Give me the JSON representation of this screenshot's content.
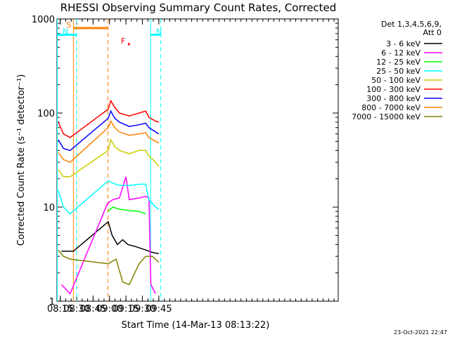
{
  "chart_data": {
    "type": "line",
    "title": "RHESSI Observing Summary Count Rates, Corrected",
    "xlabel": "Start Time (14-Mar-13 08:13:22)",
    "ylabel": "Corrected Count Rate (s⁻¹ detector⁻¹)",
    "x_ticks": [
      "08:15",
      "08:30",
      "08:45",
      "09:00",
      "09:15",
      "09:30",
      "09:45"
    ],
    "y_ticks": [
      "1",
      "10",
      "100",
      "1000"
    ],
    "y_scale": "log",
    "ylim": [
      1,
      1000
    ],
    "xlim_minutes": [
      8.2,
      12.48
    ],
    "legend_header": [
      "Det 1,3,4,5,6,9,",
      "Att 0"
    ],
    "legend_position": "right",
    "series": [
      {
        "name": "3 - 6 keV",
        "color": "#000000",
        "points": [
          [
            8.27,
            3.4
          ],
          [
            8.4,
            3.4
          ],
          [
            8.45,
            3.4
          ],
          [
            8.98,
            7.0
          ],
          [
            9.04,
            5.0
          ],
          [
            9.12,
            4.0
          ],
          [
            9.2,
            4.5
          ],
          [
            9.28,
            4.0
          ],
          [
            9.4,
            3.8
          ],
          [
            9.55,
            3.5
          ],
          [
            9.65,
            3.3
          ],
          [
            9.75,
            3.2
          ]
        ]
      },
      {
        "name": "6 - 12 keV",
        "color": "#ff00ff",
        "points": [
          [
            8.27,
            1.5
          ],
          [
            8.4,
            1.2
          ],
          [
            8.97,
            11.0
          ],
          [
            9.05,
            12.0
          ],
          [
            9.15,
            12.5
          ],
          [
            9.25,
            21.0
          ],
          [
            9.3,
            12.0
          ],
          [
            9.45,
            12.5
          ],
          [
            9.55,
            13.0
          ],
          [
            9.6,
            12.5
          ],
          [
            9.63,
            1.5
          ],
          [
            9.7,
            1.2
          ]
        ]
      },
      {
        "name": "12 - 25 keV",
        "color": "#00ff00",
        "points": [
          [
            8.98,
            9.0
          ],
          [
            9.05,
            10.0
          ],
          [
            9.15,
            9.5
          ],
          [
            9.3,
            9.2
          ],
          [
            9.45,
            9.0
          ],
          [
            9.55,
            8.5
          ]
        ]
      },
      {
        "name": "25 - 50 keV",
        "color": "#00ffff",
        "points": [
          [
            8.22,
            15.0
          ],
          [
            8.3,
            10.0
          ],
          [
            8.4,
            8.5
          ],
          [
            8.98,
            19.0
          ],
          [
            9.05,
            18.0
          ],
          [
            9.15,
            17.0
          ],
          [
            9.3,
            17.0
          ],
          [
            9.45,
            17.5
          ],
          [
            9.55,
            17.5
          ],
          [
            9.6,
            12.0
          ],
          [
            9.7,
            10.0
          ],
          [
            9.75,
            9.5
          ]
        ]
      },
      {
        "name": "50 - 100 keV",
        "color": "#cccc00",
        "points": [
          [
            8.22,
            25.0
          ],
          [
            8.3,
            21.0
          ],
          [
            8.4,
            21.0
          ],
          [
            8.98,
            40.0
          ],
          [
            9.02,
            52.0
          ],
          [
            9.08,
            44.0
          ],
          [
            9.15,
            40.0
          ],
          [
            9.3,
            37.0
          ],
          [
            9.45,
            40.0
          ],
          [
            9.55,
            40.0
          ],
          [
            9.6,
            35.0
          ],
          [
            9.7,
            30.0
          ],
          [
            9.75,
            27.0
          ]
        ]
      },
      {
        "name": "100 - 300 keV",
        "color": "#ff0000",
        "points": [
          [
            8.22,
            80.0
          ],
          [
            8.3,
            60.0
          ],
          [
            8.4,
            55.0
          ],
          [
            8.98,
            110.0
          ],
          [
            9.02,
            135.0
          ],
          [
            9.08,
            115.0
          ],
          [
            9.15,
            100.0
          ],
          [
            9.3,
            93.0
          ],
          [
            9.45,
            100.0
          ],
          [
            9.55,
            105.0
          ],
          [
            9.6,
            90.0
          ],
          [
            9.7,
            82.0
          ],
          [
            9.75,
            80.0
          ]
        ]
      },
      {
        "name": "300 - 800 keV",
        "color": "#0000ff",
        "points": [
          [
            8.22,
            52.0
          ],
          [
            8.3,
            42.0
          ],
          [
            8.4,
            40.0
          ],
          [
            8.98,
            88.0
          ],
          [
            9.02,
            105.0
          ],
          [
            9.08,
            88.0
          ],
          [
            9.15,
            80.0
          ],
          [
            9.3,
            72.0
          ],
          [
            9.45,
            75.0
          ],
          [
            9.55,
            78.0
          ],
          [
            9.6,
            70.0
          ],
          [
            9.7,
            63.0
          ],
          [
            9.75,
            60.0
          ]
        ]
      },
      {
        "name": "800 - 7000 keV",
        "color": "#ff8000",
        "points": [
          [
            8.22,
            38.0
          ],
          [
            8.3,
            32.0
          ],
          [
            8.4,
            30.0
          ],
          [
            8.98,
            70.0
          ],
          [
            9.02,
            82.0
          ],
          [
            9.08,
            70.0
          ],
          [
            9.15,
            63.0
          ],
          [
            9.3,
            58.0
          ],
          [
            9.45,
            60.0
          ],
          [
            9.55,
            62.0
          ],
          [
            9.6,
            55.0
          ],
          [
            9.7,
            50.0
          ],
          [
            9.75,
            48.0
          ]
        ]
      },
      {
        "name": "7000 - 15000 keV",
        "color": "#808000",
        "points": [
          [
            8.22,
            3.5
          ],
          [
            8.3,
            3.0
          ],
          [
            8.4,
            2.8
          ],
          [
            8.98,
            2.5
          ],
          [
            9.1,
            2.8
          ],
          [
            9.2,
            1.6
          ],
          [
            9.3,
            1.5
          ],
          [
            9.45,
            2.5
          ],
          [
            9.55,
            3.0
          ],
          [
            9.65,
            3.0
          ],
          [
            9.75,
            2.6
          ]
        ]
      }
    ],
    "flags": [
      {
        "label": "S",
        "color": "#ff8000",
        "start": 8.45,
        "end": 8.975,
        "level": 800
      },
      {
        "label": "N",
        "color": "#00ffff",
        "start": 8.2,
        "end": 8.5,
        "level": 680
      },
      {
        "label": "N",
        "color": "#00ffff",
        "start": 9.625,
        "end": 9.78,
        "level": 680
      },
      {
        "label": "F",
        "color": "#ff0000",
        "start": 9.28,
        "end": 9.31,
        "level": 540
      }
    ],
    "vlines": [
      {
        "at": 8.45,
        "color": "#ff8000",
        "style": "solid"
      },
      {
        "at": 8.975,
        "color": "#ff8000",
        "style": "dashed"
      },
      {
        "at": 8.5,
        "color": "#00ffff",
        "style": "dashed"
      },
      {
        "at": 8.205,
        "color": "#00ffff",
        "style": "solid"
      },
      {
        "at": 9.625,
        "color": "#00ffff",
        "style": "solid"
      },
      {
        "at": 9.78,
        "color": "#00ffff",
        "style": "dashed"
      }
    ]
  },
  "footer_date": "23-Oct-2021 22:47"
}
